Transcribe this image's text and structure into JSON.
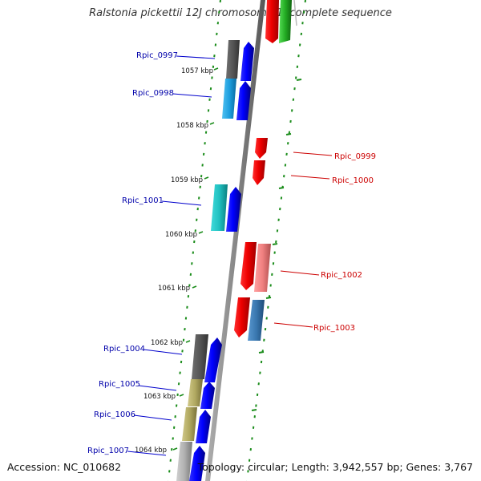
{
  "header": {
    "title": "Ralstonia pickettii 12J chromosome 1, complete sequence"
  },
  "footer": {
    "accession": "Accession: NC_010682",
    "summary": "Topology: circular; Length: 3,942,557 bp; Genes: 3,767"
  },
  "ticks": [
    "1057 kbp",
    "1058 kbp",
    "1059 kbp",
    "1060 kbp",
    "1061 kbp",
    "1062 kbp",
    "1063 kbp",
    "1064 kbp"
  ],
  "genes": [
    {
      "id": "Rpic_0997",
      "strand": "left",
      "color": "#0000cc"
    },
    {
      "id": "Rpic_0998",
      "strand": "left",
      "color": "#0000cc"
    },
    {
      "id": "Rpic_0999",
      "strand": "right",
      "color": "#cc0000"
    },
    {
      "id": "Rpic_1000",
      "strand": "right",
      "color": "#cc0000"
    },
    {
      "id": "Rpic_1001",
      "strand": "left",
      "color": "#0000cc"
    },
    {
      "id": "Rpic_1002",
      "strand": "right",
      "color": "#cc0000"
    },
    {
      "id": "Rpic_1003",
      "strand": "right",
      "color": "#cc0000"
    },
    {
      "id": "Rpic_1004",
      "strand": "left",
      "color": "#0000cc"
    },
    {
      "id": "Rpic_1005",
      "strand": "left",
      "color": "#0000cc"
    },
    {
      "id": "Rpic_1006",
      "strand": "left",
      "color": "#0000cc"
    },
    {
      "id": "Rpic_1007",
      "strand": "left",
      "color": "#0000cc"
    }
  ],
  "colors": {
    "backbone": "#888888",
    "forward": "#0000ff",
    "reverse": "#ff0000",
    "guide": "#1a8c1a",
    "cog_gray": "#555555",
    "cog_skyblue": "#1ea0e0",
    "cog_cyan": "#20c0c0",
    "cog_pink": "#f08080",
    "cog_steelblue": "#3a78b0",
    "cog_khaki": "#b0a860",
    "cog_lightgray": "#a8a8a8",
    "cog_green": "#22aa22"
  }
}
